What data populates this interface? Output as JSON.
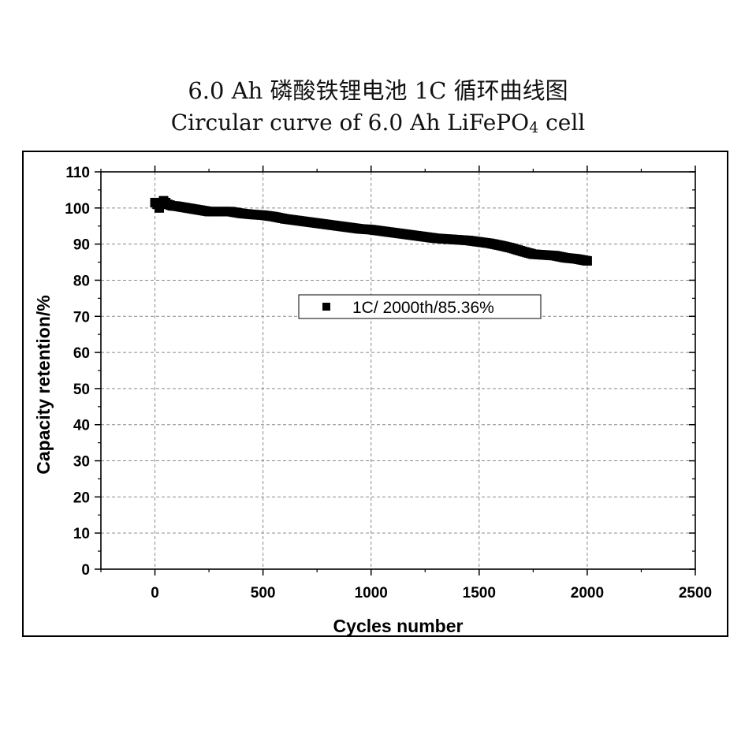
{
  "title": {
    "cn": "6.0 Ah 磷酸铁锂电池 1C 循环曲线图",
    "en_prefix": "Circular curve of 6.0 Ah LiFePO",
    "en_sub": "4",
    "en_suffix": " cell"
  },
  "chart_data": {
    "type": "scatter",
    "xlabel": "Cycles number",
    "ylabel": "Capacity retention/%",
    "xlim": [
      -250,
      2500
    ],
    "ylim": [
      0,
      110
    ],
    "xticks": [
      0,
      500,
      1000,
      1500,
      2000,
      2500
    ],
    "yticks": [
      0,
      10,
      20,
      30,
      40,
      50,
      60,
      70,
      80,
      90,
      100,
      110
    ],
    "grid": true,
    "legend_position": "center",
    "series": [
      {
        "name": "1C/ 2000th/85.36%",
        "marker": "square",
        "color": "#000000",
        "x": [
          0,
          10,
          20,
          30,
          40,
          60,
          80,
          100,
          150,
          200,
          250,
          300,
          350,
          400,
          450,
          500,
          550,
          600,
          650,
          700,
          750,
          800,
          850,
          900,
          950,
          1000,
          1050,
          1100,
          1150,
          1200,
          1250,
          1300,
          1350,
          1400,
          1450,
          1500,
          1550,
          1600,
          1650,
          1700,
          1750,
          1800,
          1850,
          1900,
          1950,
          2000
        ],
        "y": [
          101.5,
          101.0,
          100.0,
          101.5,
          102.0,
          101.0,
          100.6,
          100.5,
          100.0,
          99.5,
          99.0,
          99.0,
          99.0,
          98.5,
          98.2,
          98.0,
          97.6,
          97.0,
          96.6,
          96.2,
          95.8,
          95.4,
          95.0,
          94.6,
          94.2,
          94.0,
          93.6,
          93.2,
          92.8,
          92.4,
          92.0,
          91.6,
          91.4,
          91.2,
          91.0,
          90.6,
          90.2,
          89.6,
          88.9,
          88.0,
          87.2,
          87.0,
          86.8,
          86.2,
          85.9,
          85.36
        ]
      }
    ]
  },
  "colors": {
    "marks": "#000000",
    "grid": "#8a8a8a",
    "background": "#ffffff"
  }
}
